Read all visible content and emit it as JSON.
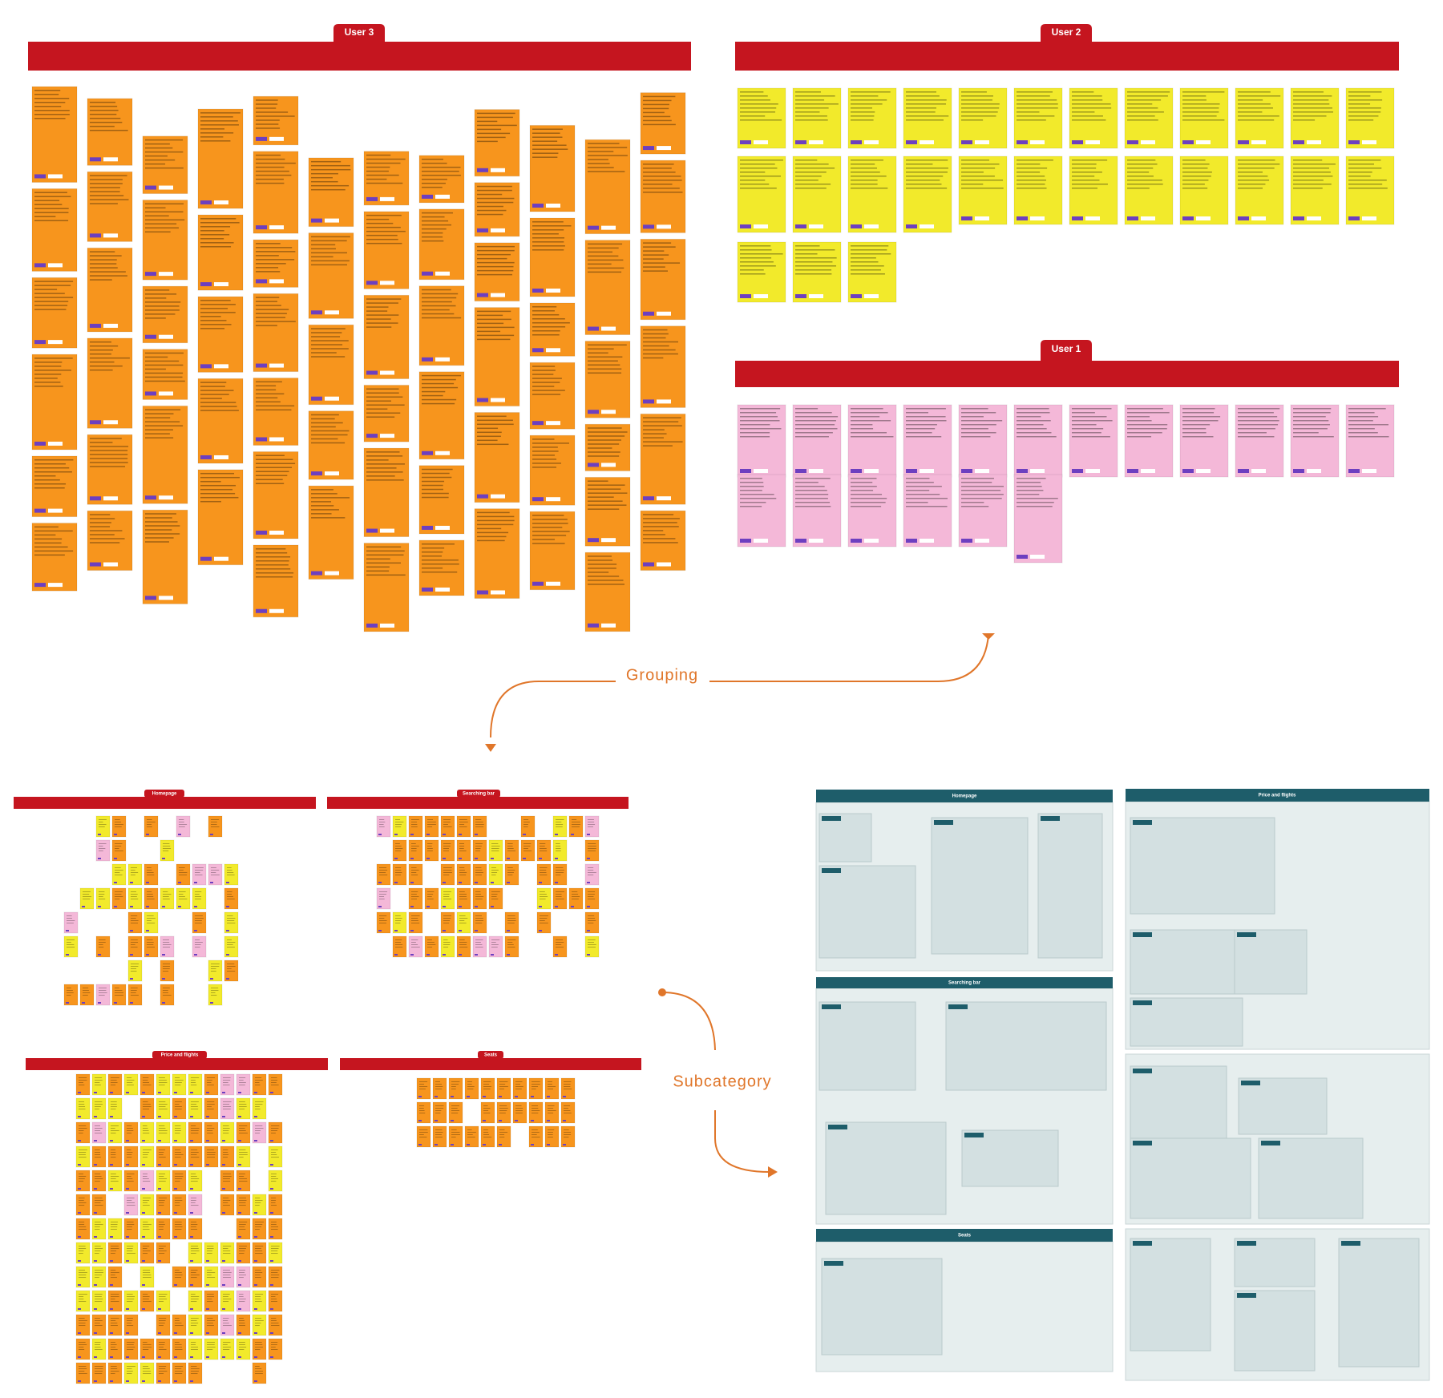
{
  "raw_boards": [
    {
      "title": "User 3"
    },
    {
      "title": "User 2"
    },
    {
      "title": "User 1"
    }
  ],
  "steps": [
    "Grouping",
    "Subcategory"
  ],
  "groups": [
    {
      "title": "Homepage"
    },
    {
      "title": "Searching bar"
    },
    {
      "title": "Price and flights"
    },
    {
      "title": "Seats"
    }
  ],
  "subcategory_boards": [
    {
      "title": "Homepage"
    },
    {
      "title": "Searching bar"
    },
    {
      "title": "Seats"
    },
    {
      "title": "Price and flights"
    }
  ]
}
